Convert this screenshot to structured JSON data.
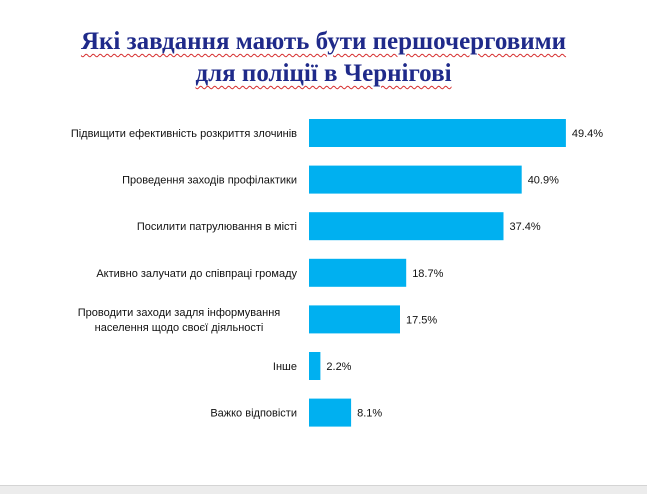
{
  "chart_data": {
    "type": "bar",
    "orientation": "horizontal",
    "title_lines": [
      "Які завдання мають бути першочерговими",
      "для поліції в Чернігові"
    ],
    "categories": [
      [
        "Підвищити ефективність розкриття злочинів"
      ],
      [
        "Проведення заходів профілактики"
      ],
      [
        "Посилити патрулювання в місті"
      ],
      [
        "Активно залучати до співпраці громаду"
      ],
      [
        "Проводити заходи задля інформування",
        "населення щодо своєї діяльності"
      ],
      [
        "Інше"
      ],
      [
        "Важко відповісти"
      ]
    ],
    "values": [
      49.4,
      40.9,
      37.4,
      18.7,
      17.5,
      2.2,
      8.1
    ],
    "value_labels": [
      "49.4%",
      "40.9%",
      "37.4%",
      "18.7%",
      "17.5%",
      "2.2%",
      "8.1%"
    ],
    "unit": "%",
    "xlim": [
      0,
      50
    ],
    "grid": false,
    "legend": "none",
    "bar_color": "#00b0f0",
    "title_color": "#1f2a8a"
  }
}
